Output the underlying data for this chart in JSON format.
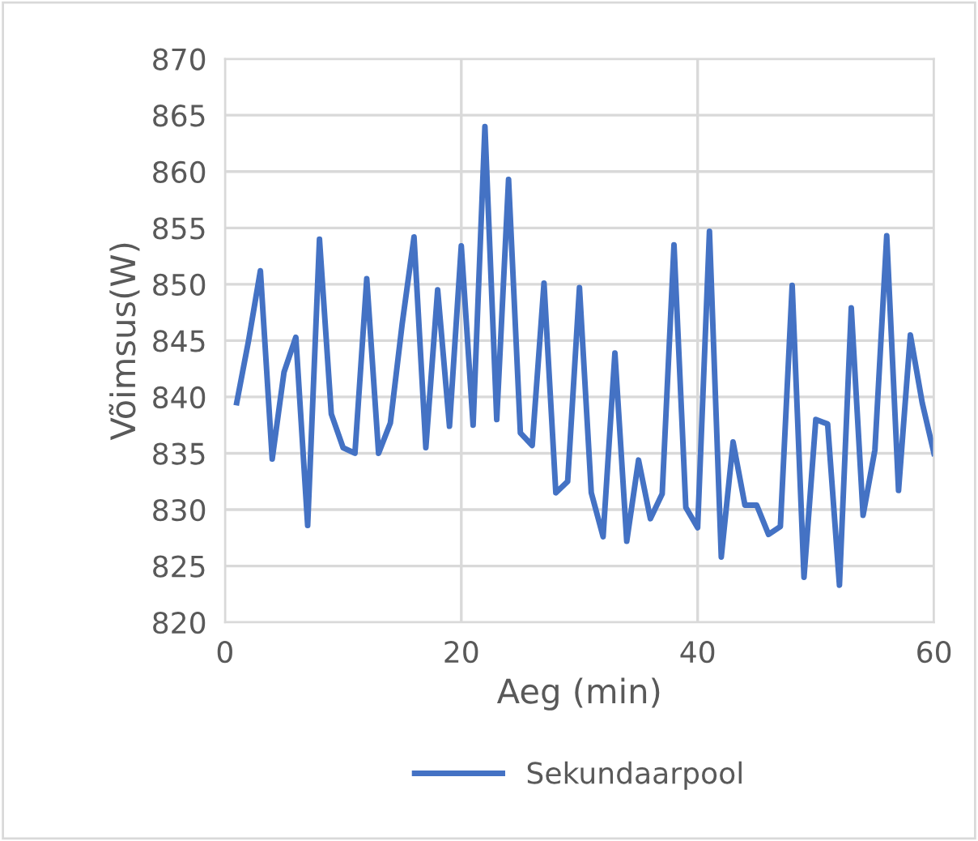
{
  "chart_data": {
    "type": "line",
    "xlabel": "Aeg (min)",
    "ylabel": "Võimsus(W)",
    "xlim": [
      0,
      60
    ],
    "xticks": [
      0,
      20,
      40,
      60
    ],
    "ylim": [
      820,
      870
    ],
    "yticks": [
      820,
      825,
      830,
      835,
      840,
      845,
      850,
      855,
      860,
      865,
      870
    ],
    "grid": true,
    "legend": "bottom",
    "marker": "none",
    "line_style": "solid",
    "x": [
      1,
      2,
      3,
      4,
      5,
      6,
      7,
      8,
      9,
      10,
      11,
      12,
      13,
      14,
      15,
      16,
      17,
      18,
      19,
      20,
      21,
      22,
      23,
      24,
      25,
      26,
      27,
      28,
      29,
      30,
      31,
      32,
      33,
      34,
      35,
      36,
      37,
      38,
      39,
      40,
      41,
      42,
      43,
      44,
      45,
      46,
      47,
      48,
      49,
      50,
      51,
      52,
      53,
      54,
      55,
      56,
      57,
      58,
      59,
      60
    ],
    "series": [
      {
        "name": "Sekundaarpool",
        "color": "#4472c4",
        "values": [
          839.5,
          845,
          851.2,
          834.5,
          842.2,
          845.3,
          828.6,
          854,
          838.5,
          835.5,
          835,
          850.5,
          835,
          837.7,
          846.5,
          854.2,
          835.5,
          849.5,
          837.4,
          853.4,
          837.5,
          864,
          838,
          859.3,
          836.8,
          835.7,
          850.1,
          831.5,
          832.5,
          849.7,
          831.5,
          827.6,
          843.9,
          827.2,
          834.4,
          829.2,
          831.4,
          853.5,
          830.2,
          828.4,
          854.7,
          825.8,
          836,
          830.4,
          830.4,
          827.8,
          828.5,
          849.9,
          824,
          838,
          837.6,
          823.3,
          847.9,
          829.5,
          835.3,
          854.3,
          831.7,
          845.5,
          839.5,
          835
        ]
      }
    ]
  }
}
